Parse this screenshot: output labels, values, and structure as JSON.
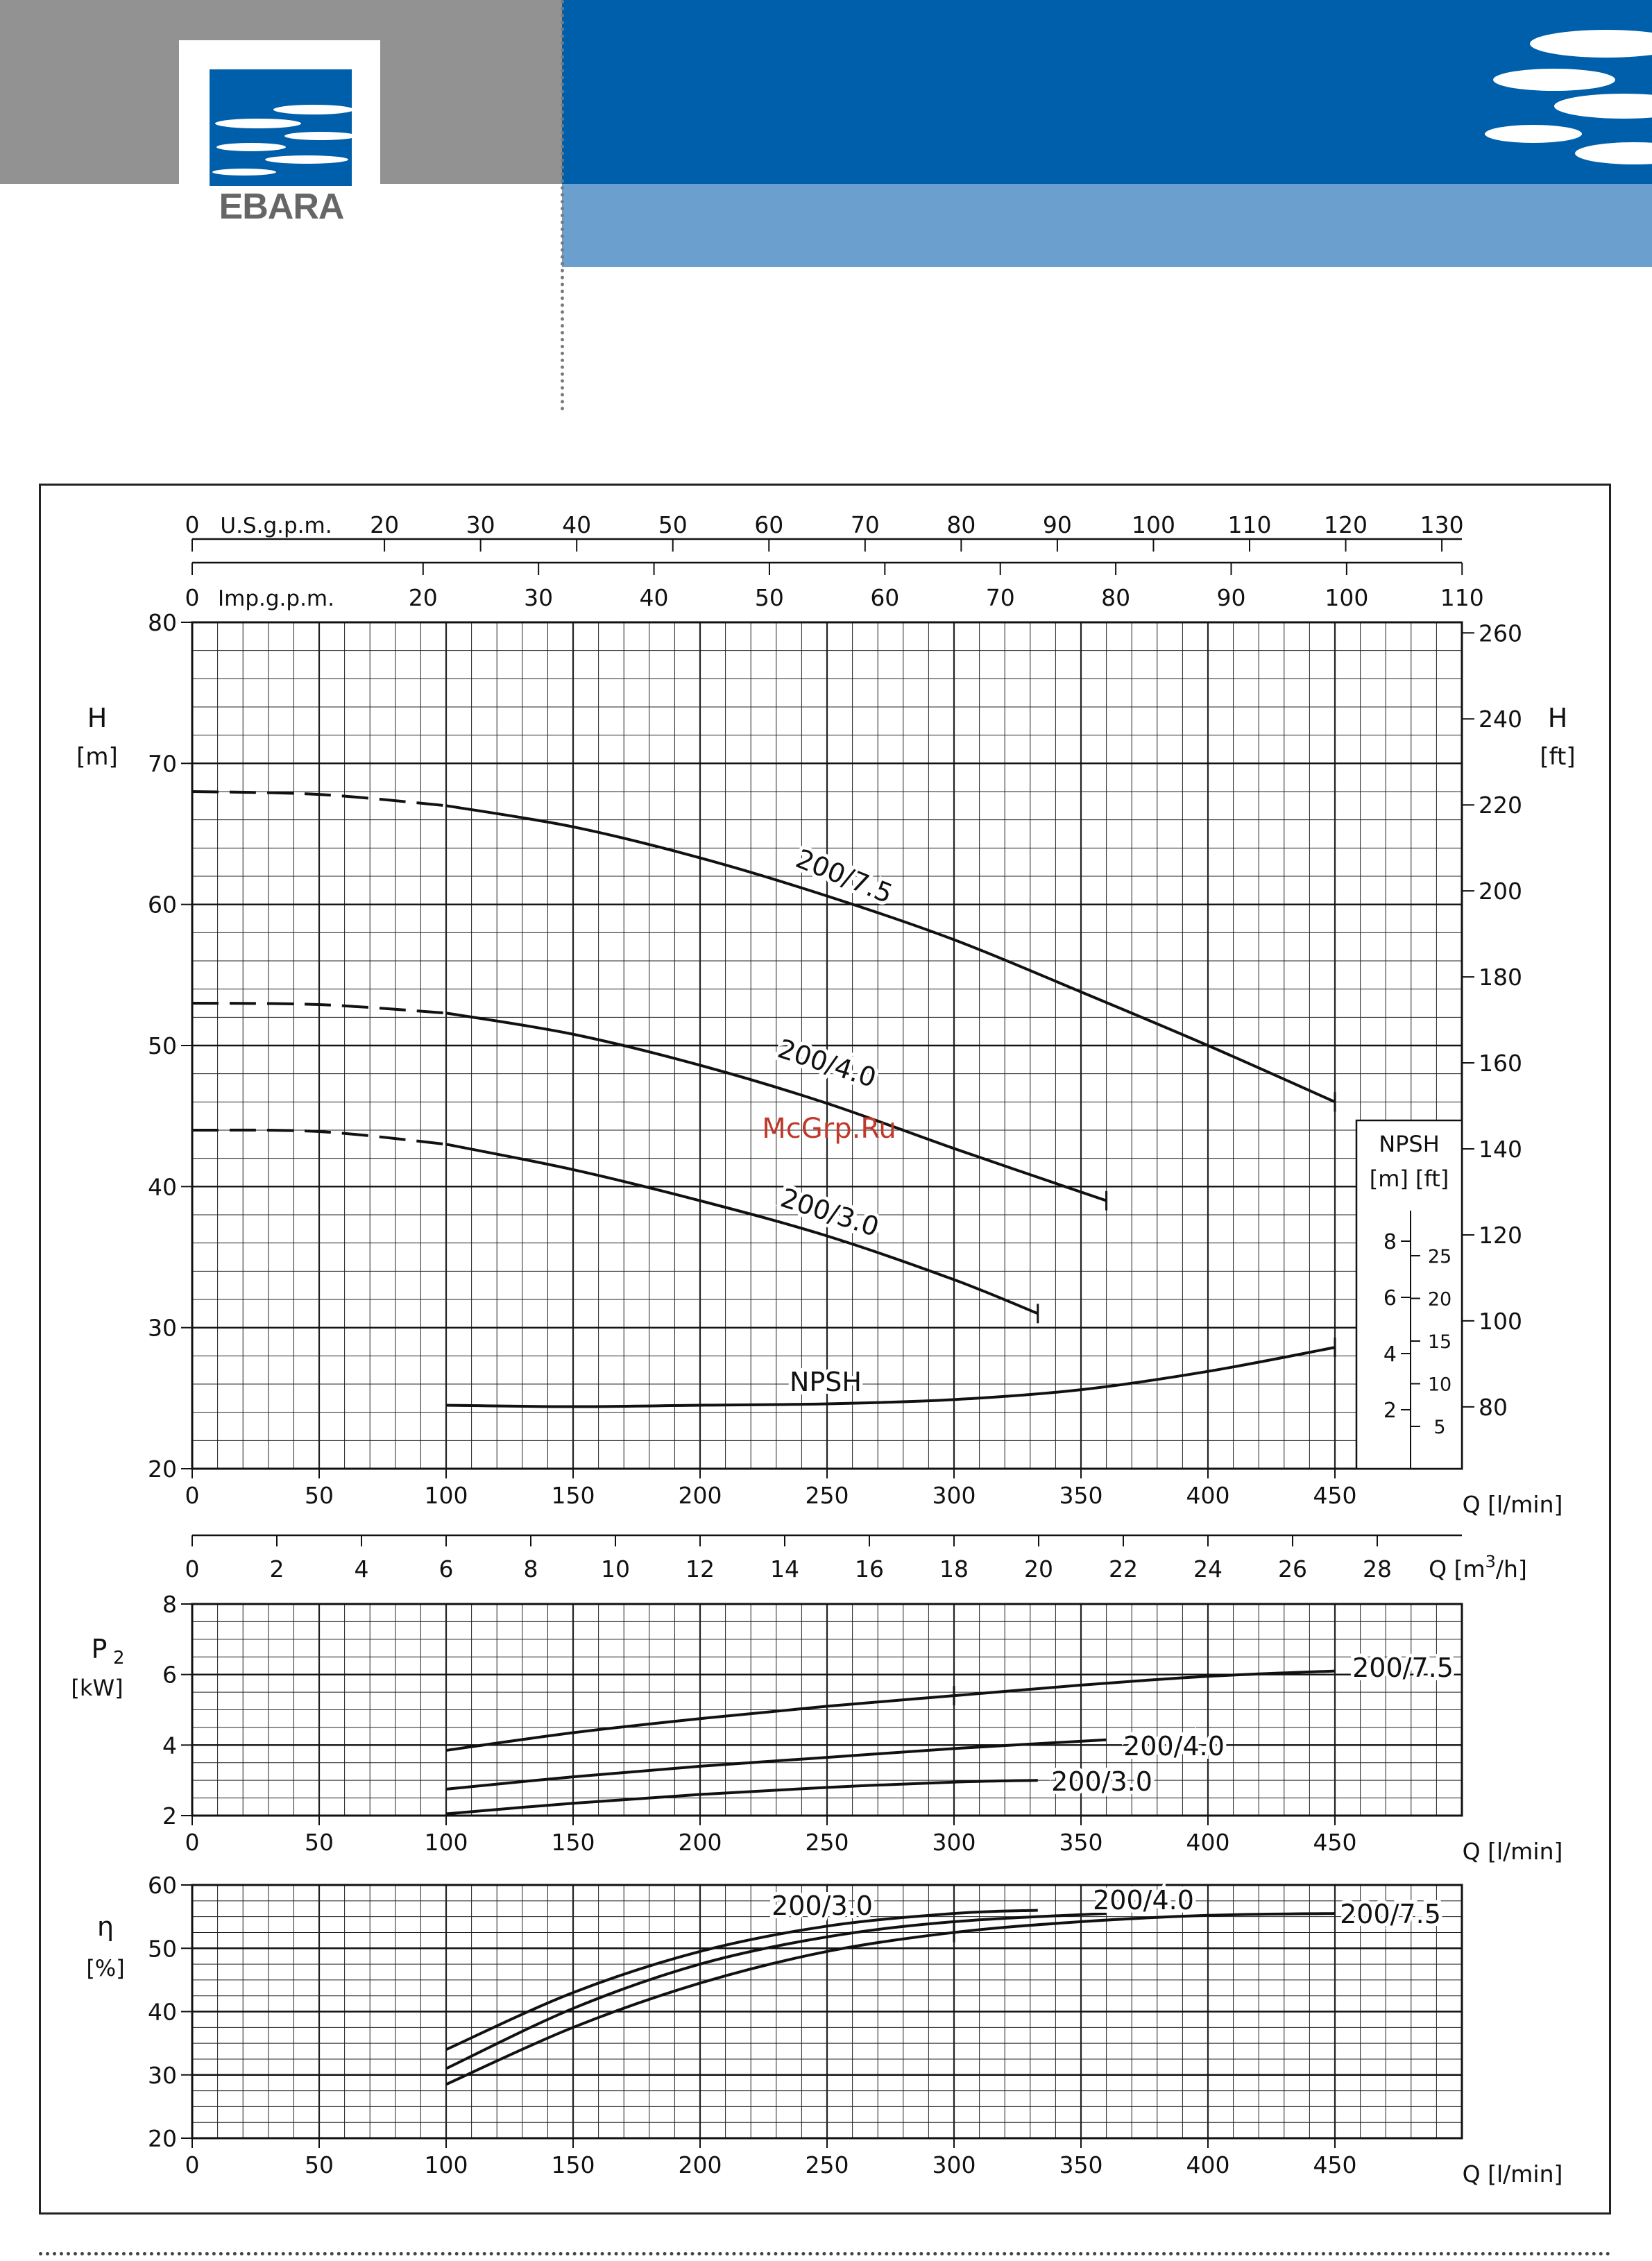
{
  "brand": {
    "name": "EBARA"
  },
  "watermark": "McGrp.Ru",
  "colors": {
    "header_grey": "#929292",
    "header_blue": "#005faa",
    "header_light_blue": "#6b9fcd",
    "watermark": "#c0392b",
    "grid": "#222222"
  },
  "chart_data": [
    {
      "type": "line",
      "id": "head",
      "xlabel": "Q [l/min]",
      "ylabel": "H [m]",
      "ylabel_right": "H [ft]",
      "xlim": [
        0,
        500
      ],
      "ylim": [
        20,
        80
      ],
      "x_ticks": [
        0,
        50,
        100,
        150,
        200,
        250,
        300,
        350,
        400,
        450
      ],
      "y_ticks": [
        20,
        30,
        40,
        50,
        60,
        70,
        80
      ],
      "y_ticks_ft": [
        80,
        100,
        120,
        140,
        160,
        180,
        200,
        220,
        240,
        260
      ],
      "top_axes": [
        {
          "label": "U.S.g.p.m.",
          "ticks": [
            0,
            20,
            30,
            40,
            50,
            60,
            70,
            80,
            90,
            100,
            110,
            120,
            130
          ]
        },
        {
          "label": "Imp.g.p.m.",
          "ticks": [
            0,
            20,
            30,
            40,
            50,
            60,
            70,
            80,
            90,
            100,
            110
          ]
        }
      ],
      "series": [
        {
          "name": "200/7.5",
          "x": [
            0,
            50,
            100,
            150,
            200,
            250,
            300,
            350,
            400,
            450
          ],
          "y": [
            68.0,
            67.8,
            67.0,
            65.5,
            63.3,
            60.6,
            57.5,
            53.8,
            50.0,
            46.0
          ],
          "dashed_below": 100
        },
        {
          "name": "200/4.0",
          "x": [
            0,
            50,
            100,
            150,
            200,
            250,
            300,
            360
          ],
          "y": [
            53.0,
            52.9,
            52.3,
            50.8,
            48.6,
            45.9,
            42.7,
            39.0
          ],
          "dashed_below": 100
        },
        {
          "name": "200/3.0",
          "x": [
            0,
            50,
            100,
            150,
            200,
            250,
            300,
            333
          ],
          "y": [
            44.0,
            43.9,
            43.0,
            41.2,
            39.0,
            36.5,
            33.4,
            31.0
          ],
          "dashed_below": 100
        },
        {
          "name": "NPSH",
          "x": [
            100,
            150,
            200,
            250,
            300,
            350,
            400,
            450
          ],
          "y": [
            24.5,
            24.4,
            24.5,
            24.6,
            24.9,
            25.6,
            26.9,
            28.6
          ]
        }
      ],
      "npsh_inset": {
        "title": "NPSH",
        "units": "[m] [ft]",
        "m_ticks": [
          2,
          4,
          6,
          8
        ],
        "ft_ticks": [
          5,
          10,
          15,
          20,
          25
        ]
      }
    },
    {
      "type": "line",
      "id": "power",
      "xlabel": "Q [l/min]",
      "ylabel": "P2 [kW]",
      "xlim": [
        0,
        500
      ],
      "ylim": [
        2,
        8
      ],
      "x_ticks": [
        0,
        50,
        100,
        150,
        200,
        250,
        300,
        350,
        400,
        450
      ],
      "y_ticks": [
        2,
        4,
        6,
        8
      ],
      "top_axis": {
        "label": "Q [m3/h]",
        "ticks": [
          0,
          2,
          4,
          6,
          8,
          10,
          12,
          14,
          16,
          18,
          20,
          22,
          24,
          26,
          28
        ]
      },
      "series": [
        {
          "name": "200/7.5",
          "x": [
            100,
            150,
            200,
            250,
            300,
            350,
            400,
            450
          ],
          "y": [
            3.85,
            4.35,
            4.75,
            5.1,
            5.4,
            5.7,
            5.95,
            6.1
          ]
        },
        {
          "name": "200/4.0",
          "x": [
            100,
            150,
            200,
            250,
            300,
            360
          ],
          "y": [
            2.75,
            3.1,
            3.4,
            3.65,
            3.9,
            4.15
          ]
        },
        {
          "name": "200/3.0",
          "x": [
            100,
            150,
            200,
            250,
            300,
            333
          ],
          "y": [
            2.05,
            2.35,
            2.6,
            2.8,
            2.95,
            3.0
          ]
        }
      ]
    },
    {
      "type": "line",
      "id": "efficiency",
      "xlabel": "Q [l/min]",
      "ylabel": "η [%]",
      "xlim": [
        0,
        500
      ],
      "ylim": [
        20,
        60
      ],
      "x_ticks": [
        0,
        50,
        100,
        150,
        200,
        250,
        300,
        350,
        400,
        450
      ],
      "y_ticks": [
        20,
        30,
        40,
        50,
        60
      ],
      "series": [
        {
          "name": "200/3.0",
          "x": [
            100,
            150,
            200,
            250,
            300,
            333
          ],
          "y": [
            34.0,
            43.0,
            49.5,
            53.5,
            55.5,
            56.0
          ]
        },
        {
          "name": "200/4.0",
          "x": [
            100,
            150,
            200,
            250,
            300,
            360
          ],
          "y": [
            31.0,
            40.5,
            47.5,
            51.8,
            54.2,
            55.5
          ]
        },
        {
          "name": "200/7.5",
          "x": [
            100,
            150,
            200,
            250,
            300,
            350,
            400,
            450
          ],
          "y": [
            28.5,
            37.5,
            44.5,
            49.5,
            52.5,
            54.2,
            55.2,
            55.5
          ]
        }
      ]
    }
  ]
}
